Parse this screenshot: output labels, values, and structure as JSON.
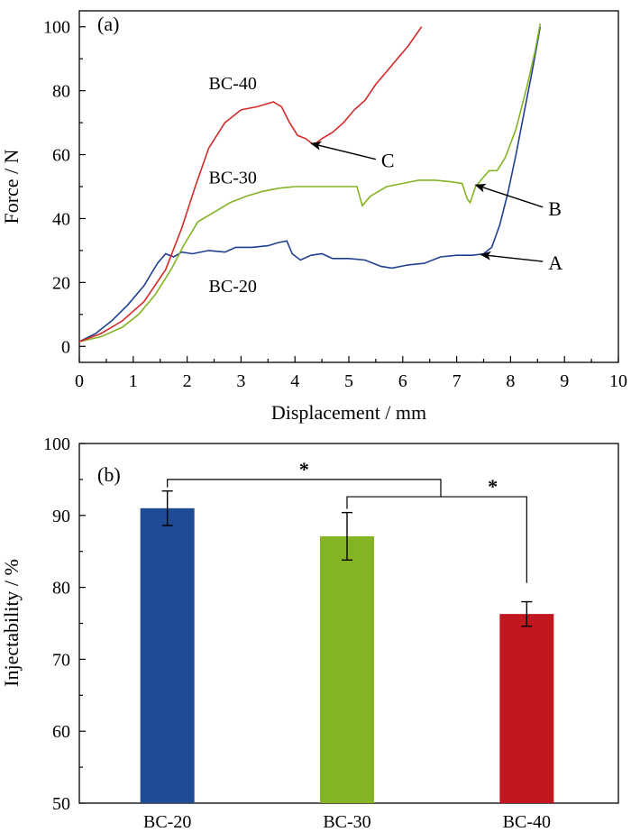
{
  "chart_data": [
    {
      "type": "line",
      "panel_label": "(a)",
      "xlabel": "Displacement / mm",
      "ylabel": "Force / N",
      "xlim": [
        0,
        10
      ],
      "ylim": [
        -5,
        105
      ],
      "xticks": [
        0,
        1,
        2,
        3,
        4,
        5,
        6,
        7,
        8,
        9,
        10
      ],
      "yticks": [
        0,
        20,
        40,
        60,
        80,
        100
      ],
      "grid": false,
      "series": [
        {
          "name": "BC-20",
          "color": "#1f3f8f",
          "points": [
            [
              0,
              1.5
            ],
            [
              0.3,
              4
            ],
            [
              0.6,
              8
            ],
            [
              0.9,
              13
            ],
            [
              1.2,
              19
            ],
            [
              1.45,
              26
            ],
            [
              1.6,
              29
            ],
            [
              1.75,
              28
            ],
            [
              1.9,
              29.5
            ],
            [
              2.1,
              29
            ],
            [
              2.4,
              30
            ],
            [
              2.7,
              29.5
            ],
            [
              2.9,
              31
            ],
            [
              3.2,
              31
            ],
            [
              3.5,
              31.5
            ],
            [
              3.7,
              32.5
            ],
            [
              3.85,
              33
            ],
            [
              3.95,
              29
            ],
            [
              4.1,
              27
            ],
            [
              4.3,
              28.5
            ],
            [
              4.5,
              29
            ],
            [
              4.7,
              27.5
            ],
            [
              5.0,
              27.5
            ],
            [
              5.3,
              27
            ],
            [
              5.6,
              25
            ],
            [
              5.8,
              24.5
            ],
            [
              6.1,
              25.5
            ],
            [
              6.4,
              26
            ],
            [
              6.7,
              28
            ],
            [
              7.0,
              28.5
            ],
            [
              7.3,
              28.5
            ],
            [
              7.5,
              29
            ],
            [
              7.65,
              31
            ],
            [
              7.8,
              38
            ],
            [
              7.95,
              48
            ],
            [
              8.1,
              60
            ],
            [
              8.25,
              73
            ],
            [
              8.4,
              86
            ],
            [
              8.55,
              100
            ]
          ]
        },
        {
          "name": "BC-30",
          "color": "#84b424",
          "points": [
            [
              0,
              1.5
            ],
            [
              0.4,
              3
            ],
            [
              0.8,
              6
            ],
            [
              1.1,
              10
            ],
            [
              1.4,
              16
            ],
            [
              1.7,
              24
            ],
            [
              1.95,
              32
            ],
            [
              2.2,
              39
            ],
            [
              2.5,
              42
            ],
            [
              2.8,
              45
            ],
            [
              3.1,
              47
            ],
            [
              3.4,
              48.5
            ],
            [
              3.7,
              49.5
            ],
            [
              4.0,
              50
            ],
            [
              4.4,
              50
            ],
            [
              4.8,
              50
            ],
            [
              5.15,
              50
            ],
            [
              5.25,
              44
            ],
            [
              5.4,
              47
            ],
            [
              5.7,
              50
            ],
            [
              6.0,
              51
            ],
            [
              6.3,
              52
            ],
            [
              6.6,
              52
            ],
            [
              6.9,
              51.5
            ],
            [
              7.1,
              51
            ],
            [
              7.2,
              46
            ],
            [
              7.25,
              45
            ],
            [
              7.35,
              50
            ],
            [
              7.5,
              53
            ],
            [
              7.6,
              55
            ],
            [
              7.75,
              55
            ],
            [
              7.9,
              59
            ],
            [
              8.1,
              68
            ],
            [
              8.3,
              81
            ],
            [
              8.45,
              92
            ],
            [
              8.55,
              101
            ]
          ]
        },
        {
          "name": "BC-40",
          "color": "#d42a2a",
          "points": [
            [
              0,
              1.5
            ],
            [
              0.4,
              4
            ],
            [
              0.8,
              8
            ],
            [
              1.2,
              14
            ],
            [
              1.6,
              24
            ],
            [
              1.9,
              37
            ],
            [
              2.15,
              50
            ],
            [
              2.4,
              62
            ],
            [
              2.7,
              70
            ],
            [
              3.0,
              74
            ],
            [
              3.3,
              75
            ],
            [
              3.6,
              76.5
            ],
            [
              3.75,
              75
            ],
            [
              3.9,
              70
            ],
            [
              4.05,
              66
            ],
            [
              4.2,
              65
            ],
            [
              4.35,
              63
            ],
            [
              4.5,
              65
            ],
            [
              4.7,
              67
            ],
            [
              4.9,
              70
            ],
            [
              5.1,
              74
            ],
            [
              5.3,
              77
            ],
            [
              5.5,
              82
            ],
            [
              5.7,
              86
            ],
            [
              5.9,
              90
            ],
            [
              6.1,
              94
            ],
            [
              6.35,
              100
            ]
          ]
        }
      ],
      "annotations": [
        {
          "text": "BC-40",
          "x": 2.4,
          "y": 82.5
        },
        {
          "text": "BC-30",
          "x": 2.4,
          "y": 53
        },
        {
          "text": "BC-20",
          "x": 2.4,
          "y": 19
        },
        {
          "text": "A",
          "x": 8.7,
          "y": 26,
          "arrow_to": [
            7.45,
            28.7
          ]
        },
        {
          "text": "B",
          "x": 8.7,
          "y": 43,
          "arrow_to": [
            7.35,
            50.5
          ]
        },
        {
          "text": "C",
          "x": 5.6,
          "y": 58,
          "arrow_to": [
            4.3,
            63.5
          ]
        }
      ]
    },
    {
      "type": "bar",
      "panel_label": "(b)",
      "xlabel": "",
      "ylabel": "Injectability / %",
      "ylim": [
        50,
        100
      ],
      "yticks": [
        50,
        60,
        70,
        80,
        90,
        100
      ],
      "grid": false,
      "categories": [
        "BC-20",
        "BC-30",
        "BC-40"
      ],
      "values": [
        91.0,
        87.1,
        76.3
      ],
      "errors": [
        2.4,
        3.3,
        1.7
      ],
      "colors": [
        "#1f4a94",
        "#84b424",
        "#c0181e"
      ],
      "significance": [
        {
          "from": 0,
          "to": 2,
          "label": "*"
        },
        {
          "from": 1,
          "to": 2,
          "label": "*"
        }
      ]
    }
  ]
}
